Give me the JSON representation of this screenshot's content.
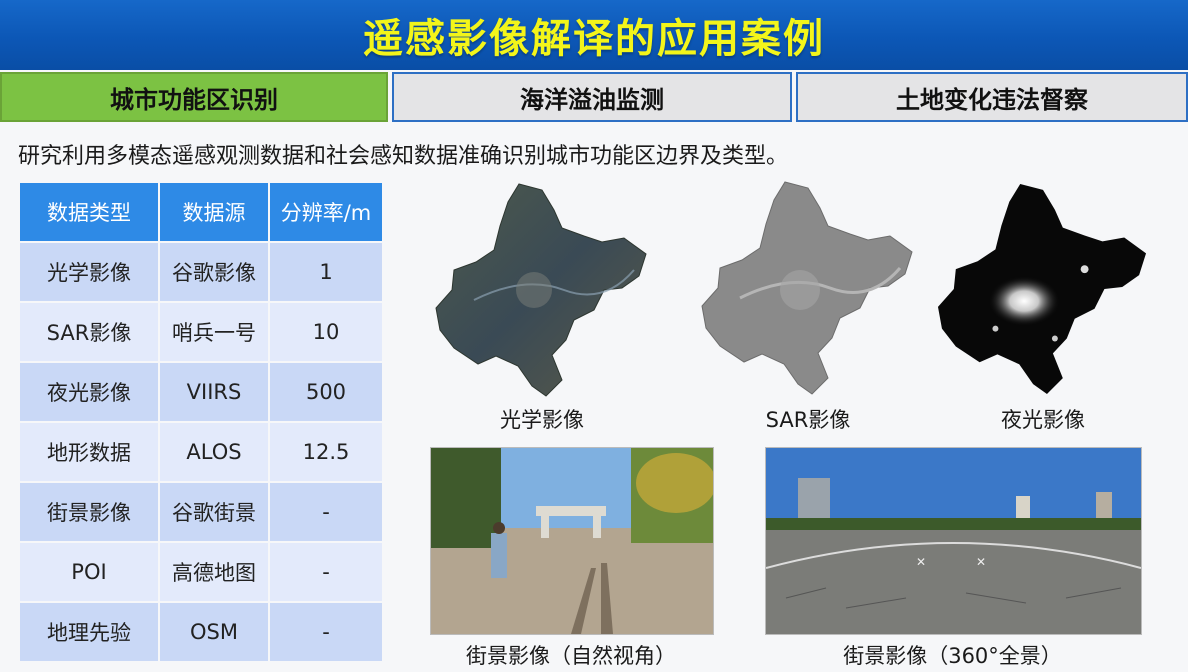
{
  "title": "遥感影像解译的应用案例",
  "tabs": [
    {
      "label": "城市功能区识别",
      "active": true
    },
    {
      "label": "海洋溢油监测",
      "active": false
    },
    {
      "label": "土地变化违法督察",
      "active": false
    }
  ],
  "intro": "研究利用多模态遥感观测数据和社会感知数据准确识别城市功能区边界及类型。",
  "table": {
    "headers": [
      "数据类型",
      "数据源",
      "分辨率/m"
    ],
    "rows": [
      [
        "光学影像",
        "谷歌影像",
        "1"
      ],
      [
        "SAR影像",
        "哨兵一号",
        "10"
      ],
      [
        "夜光影像",
        "VIIRS",
        "500"
      ],
      [
        "地形数据",
        "ALOS",
        "12.5"
      ],
      [
        "街景影像",
        "谷歌街景",
        "-"
      ],
      [
        "POI",
        "高德地图",
        "-"
      ],
      [
        "地理先验",
        "OSM",
        "-"
      ]
    ]
  },
  "images": {
    "optical": "光学影像",
    "sar": "SAR影像",
    "night": "夜光影像",
    "street_natural": "街景影像（自然视角）",
    "street_360": "街景影像（360°全景）"
  },
  "colors": {
    "title_text": "#f3f51a",
    "title_bg": "#0c57b6",
    "tab_active": "#7cc243",
    "tab_inactive": "#e4e4e6",
    "table_header": "#2e8ae6",
    "table_row_a": "#c9d8f6",
    "table_row_b": "#e3eafb"
  }
}
